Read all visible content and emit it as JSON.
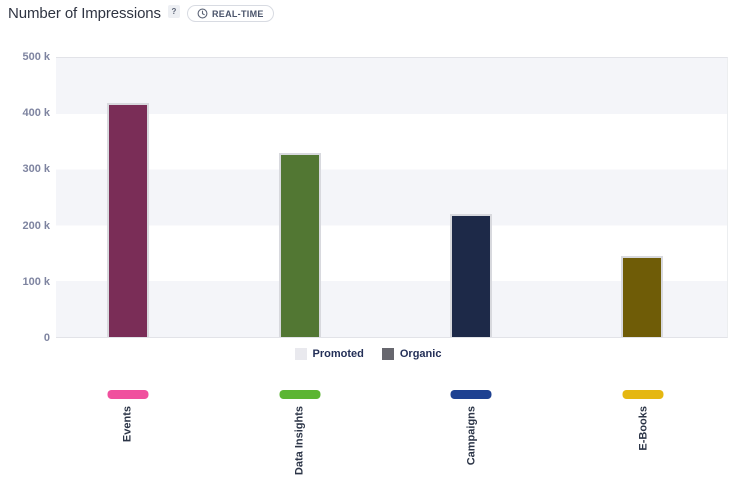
{
  "header": {
    "title": "Number of Impressions",
    "help_badge": "?",
    "realtime_label": "REAL-TIME"
  },
  "legend": {
    "items": [
      {
        "label": "Promoted",
        "color": "#e9e9ee"
      },
      {
        "label": "Organic",
        "color": "#67676e"
      }
    ]
  },
  "chart_data": {
    "type": "bar",
    "title": "Number of Impressions",
    "categories": [
      "Events",
      "Data Insights",
      "Campaigns",
      "E-Books"
    ],
    "values": [
      420000,
      330000,
      220000,
      145000
    ],
    "bar_colors": [
      "#7a2d57",
      "#527733",
      "#1d2948",
      "#6f5c07"
    ],
    "axis_swatch_colors": [
      "#f0509e",
      "#5cb533",
      "#1e4191",
      "#e5b711"
    ],
    "y_ticks": [
      "0",
      "100 k",
      "200 k",
      "300 k",
      "400 k",
      "500 k"
    ],
    "ylim": [
      0,
      500000
    ],
    "grid": "alternating horizontal bands",
    "band_colors": [
      "#f4f5f9",
      "#ffffff"
    ],
    "legend_entries": [
      "Promoted",
      "Organic"
    ],
    "legend_position": "bottom",
    "bar_centers_pct": [
      10.7,
      36.3,
      61.8,
      87.4
    ]
  }
}
